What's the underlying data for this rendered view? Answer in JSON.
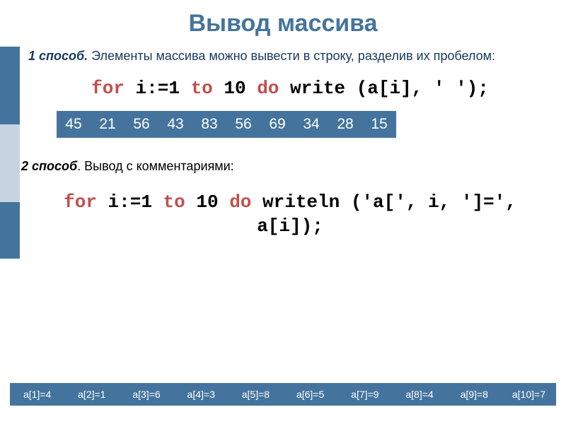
{
  "title": "Вывод массива",
  "colors": {
    "accent": "#44749d",
    "accent_light": "#c6d4e1",
    "keyword": "#c0504d",
    "title_color": "#17375d"
  },
  "method1": {
    "label": "1 способ.",
    "text": " Элементы массива можно вывести в строку, разделив их пробелом:",
    "code": {
      "k1": "for",
      "p1": " i:=1 ",
      "k2": "to",
      "p2": " 10 ",
      "k3": "do",
      "p3": " write (a[i], ' ');"
    },
    "output": [
      "45",
      "21",
      "56",
      "43",
      "83",
      "56",
      "69",
      "34",
      "28",
      "15"
    ]
  },
  "method2": {
    "label": "2 способ",
    "text": ". Вывод с комментариями:",
    "code": {
      "k1": "for",
      "p1": " i:=1 ",
      "k2": "to",
      "p2": " 10 ",
      "k3": "do",
      "p3": " writeln ('a[', i, ']=', a[i]);"
    },
    "output": [
      "a[1]=4",
      "a[2]=1",
      "a[3]=6",
      "a[4]=3",
      "a[5]=8",
      "a[6]=5",
      "a[7]=9",
      "a[8]=4",
      "a[9]=8",
      "a[10]=7"
    ]
  }
}
